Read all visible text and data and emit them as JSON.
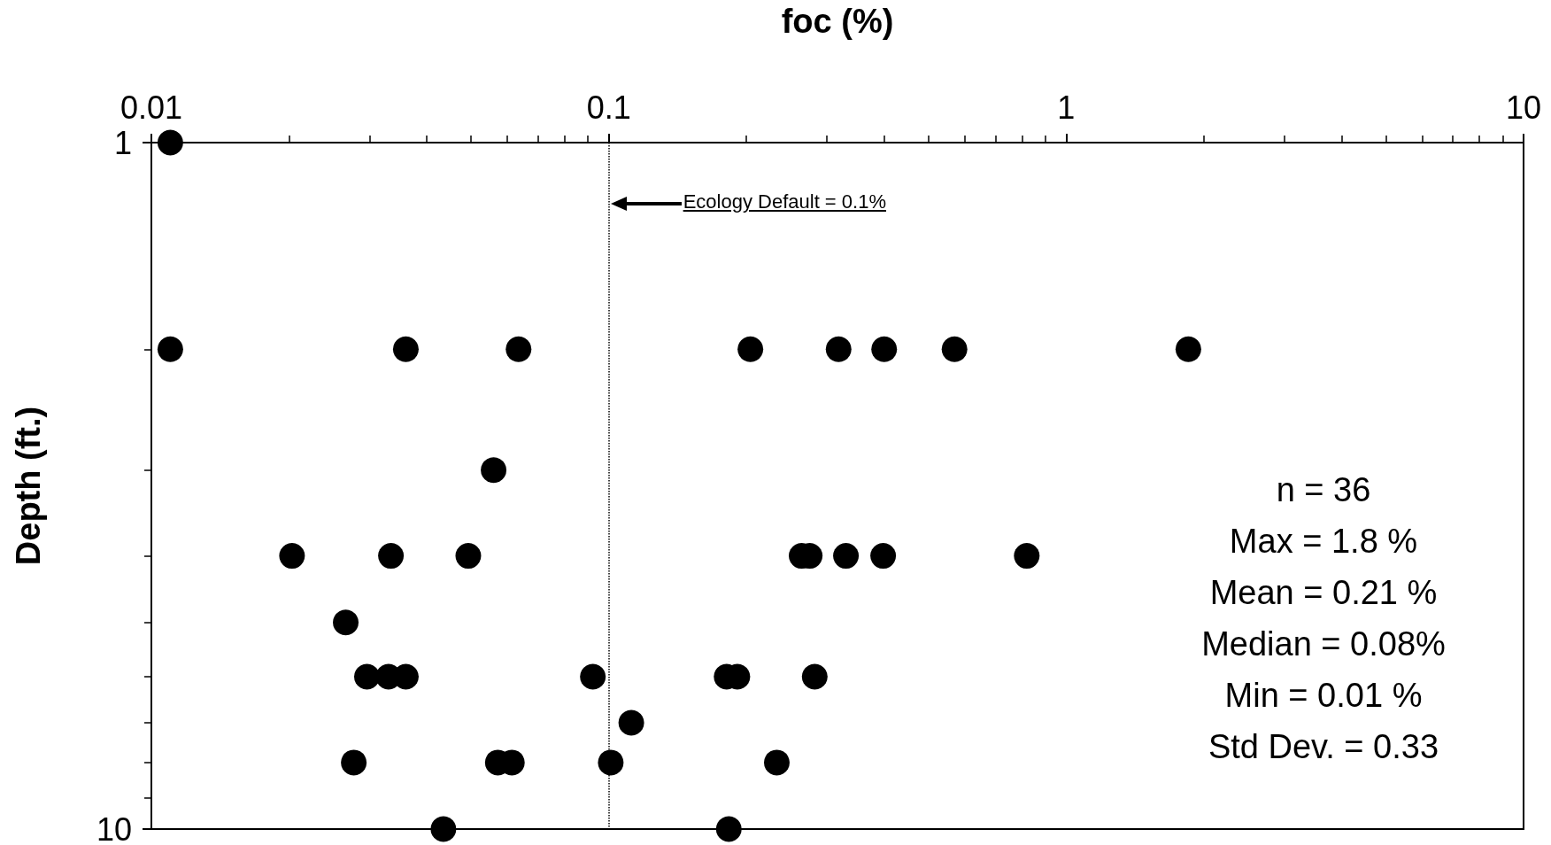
{
  "chart_data": {
    "type": "scatter",
    "xlabel": "foc (%)",
    "ylabel": "Depth (ft.)",
    "log": "xy",
    "xlim": [
      0.01,
      10
    ],
    "xticks": [
      0.01,
      0.1,
      1,
      10
    ],
    "ylim": [
      10,
      1
    ],
    "yticks": [
      1,
      10
    ],
    "grid": false,
    "marker": "circle",
    "series": [
      {
        "color": "#000000",
        "x": [
          0.011,
          0.011,
          0.036,
          0.0635,
          0.204,
          0.318,
          0.4,
          0.57,
          1.85,
          0.056,
          0.0203,
          0.0334,
          0.0493,
          0.264,
          0.275,
          0.33,
          0.398,
          0.82,
          0.0266,
          0.0296,
          0.033,
          0.036,
          0.0923,
          0.181,
          0.191,
          0.282,
          0.112,
          0.0277,
          0.0572,
          0.0614,
          0.101,
          0.233,
          0.0435,
          0.183
        ],
        "values": [
          1,
          2,
          2,
          2,
          2,
          2,
          2,
          2,
          2,
          3,
          4,
          4,
          4,
          4,
          4,
          4,
          4,
          4,
          5,
          6,
          6,
          6,
          6,
          6,
          6,
          6,
          7,
          8,
          8,
          8,
          8,
          8,
          10,
          10
        ]
      }
    ],
    "ref_lines": [
      {
        "axis": "x",
        "value": 0.1,
        "label": "Ecology Default = 0.1%",
        "line_style": "dotted",
        "color": "#000000"
      }
    ],
    "annotations": [
      "n = 36",
      "Max = 1.8 %",
      "Mean = 0.21 %",
      "Median = 0.08%",
      "Min = 0.01 %",
      "Std Dev. = 0.33"
    ]
  }
}
